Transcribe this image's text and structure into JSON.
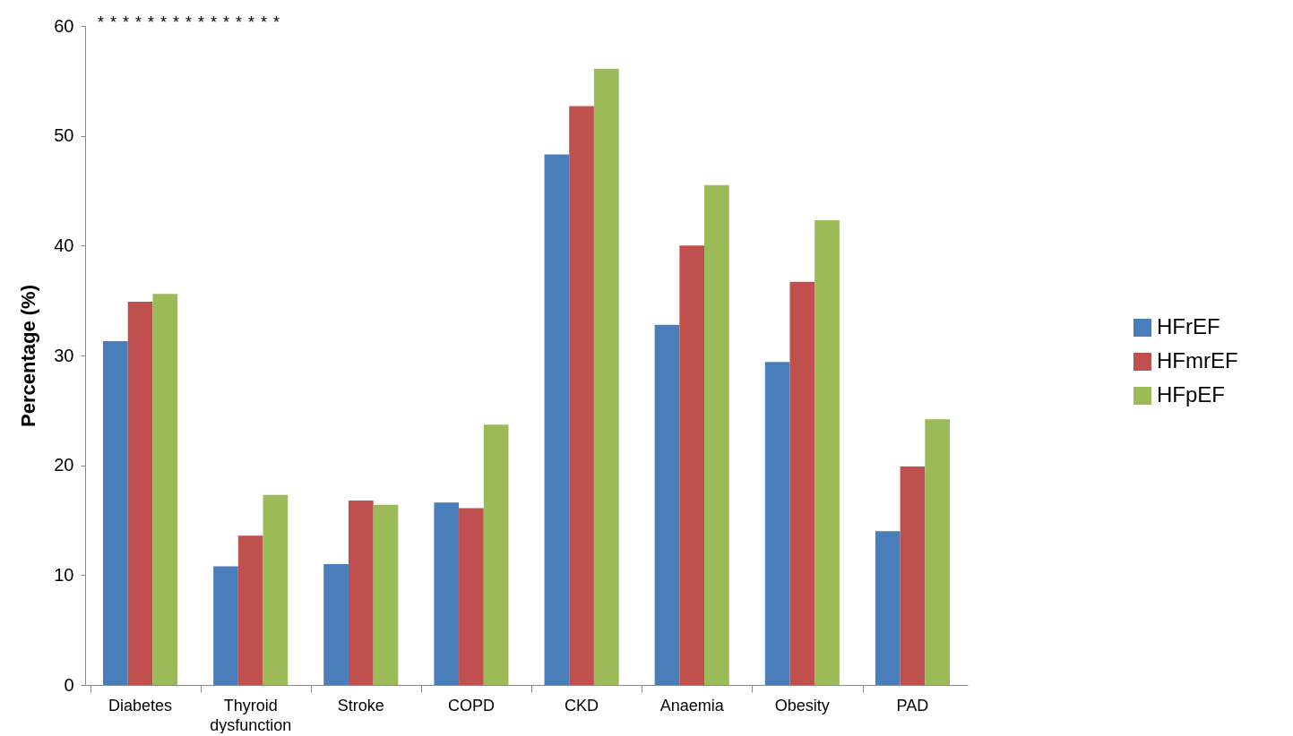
{
  "chart_data": {
    "type": "bar",
    "ylabel": "Percentage (%)",
    "categories": [
      "Diabetes",
      "Thyroid dysfunction",
      "Stroke",
      "COPD",
      "CKD",
      "Anaemia",
      "Obesity",
      "PAD"
    ],
    "series": [
      {
        "name": "HFrEF",
        "color": "#4a7ebb",
        "values": [
          31.3,
          10.8,
          11.0,
          16.6,
          48.3,
          32.8,
          29.4,
          14.0
        ]
      },
      {
        "name": "HFmrEF",
        "color": "#c0504d",
        "values": [
          34.9,
          13.6,
          16.8,
          16.1,
          52.7,
          40.0,
          36.7,
          19.9
        ]
      },
      {
        "name": "HFpEF",
        "color": "#9bbb59",
        "values": [
          35.6,
          17.3,
          16.4,
          23.7,
          56.1,
          45.5,
          42.3,
          24.2
        ]
      }
    ],
    "ylim": [
      0,
      60
    ],
    "yticks": [
      0,
      10,
      20,
      30,
      40,
      50,
      60
    ],
    "grid": false,
    "legend": "right",
    "annotations": [
      "*",
      "*",
      "*",
      "*",
      "*",
      "*",
      "*",
      "*",
      "*",
      "*",
      "*",
      "*",
      "*",
      "*",
      "*"
    ]
  }
}
